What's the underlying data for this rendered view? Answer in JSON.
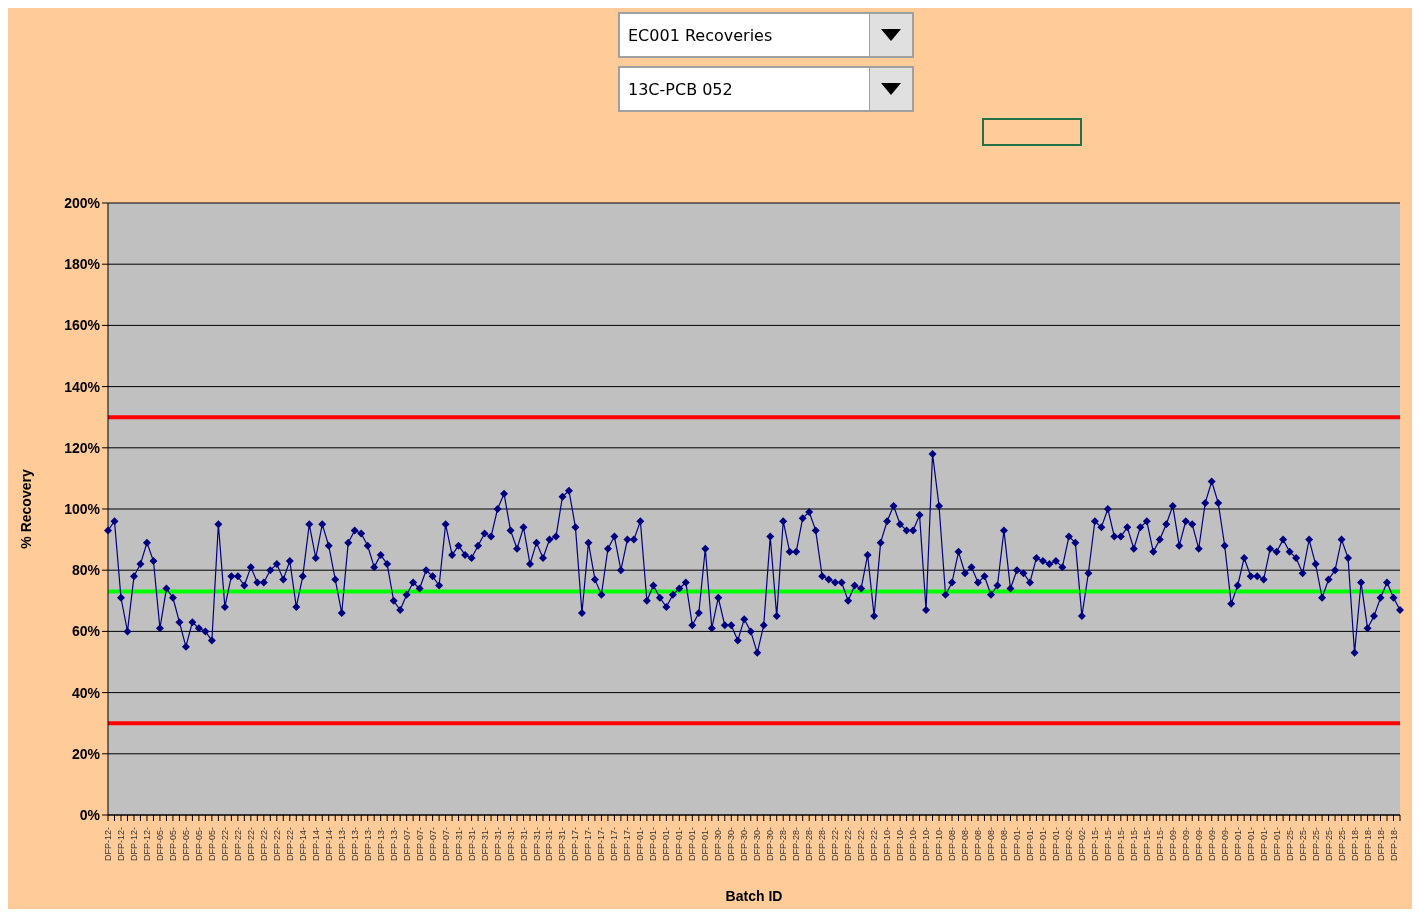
{
  "chart_data": {
    "type": "line",
    "title": "EC001 Recoveries",
    "subtitle": "13C-PCB 052",
    "xlabel": "Batch ID",
    "ylabel": "% Recovery",
    "categories": [
      "DFP-12-",
      null,
      "DFP-12-",
      null,
      "DFP-12-",
      null,
      "DFP-12-",
      null,
      "DFP-05-",
      null,
      "DFP-05-",
      null,
      "DFP-05-",
      null,
      "DFP-05-",
      null,
      "DFP-05-",
      null,
      "DFP-22-",
      null,
      "DFP-22-",
      null,
      "DFP-22-",
      null,
      "DFP-22-",
      null,
      "DFP-22-",
      null,
      "DFP-22-",
      null,
      "DFP-14-",
      null,
      "DFP-14-",
      null,
      "DFP-14-",
      null,
      "DFP-13-",
      null,
      "DFP-13-",
      null,
      "DFP-13-",
      null,
      "DFP-13-",
      null,
      "DFP-13-",
      null,
      "DFP-07-",
      null,
      "DFP-07-",
      null,
      "DFP-07-",
      null,
      "DFP-07-",
      null,
      "DFP-31-",
      null,
      "DFP-31-",
      null,
      "DFP-31-",
      null,
      "DFP-31-",
      null,
      "DFP-31-",
      null,
      "DFP-31-",
      null,
      "DFP-31-",
      null,
      "DFP-31-",
      null,
      "DFP-31-",
      null,
      "DFP-17-",
      null,
      "DFP-17-",
      null,
      "DFP-17-",
      null,
      "DFP-17-",
      null,
      "DFP-17-",
      null,
      "DFP-01-",
      null,
      "DFP-01-",
      null,
      "DFP-01-",
      null,
      "DFP-01-",
      null,
      "DFP-01-",
      null,
      "DFP-01-",
      null,
      "DFP-30-",
      null,
      "DFP-30-",
      null,
      "DFP-30-",
      null,
      "DFP-30-",
      null,
      "DFP-30-",
      null,
      "DFP-28-",
      null,
      "DFP-28-",
      null,
      "DFP-28-",
      null,
      "DFP-28-",
      null,
      "DFP-22-",
      null,
      "DFP-22-",
      null,
      "DFP-22-",
      null,
      "DFP-22-",
      null,
      "DFP-10-",
      null,
      "DFP-10-",
      null,
      "DFP-10-",
      null,
      "DFP-10-",
      null,
      "DFP-10-",
      null,
      "DFP-08-",
      null,
      "DFP-08-",
      null,
      "DFP-08-",
      null,
      "DFP-08-",
      null,
      "DFP-08-",
      null,
      "DFP-01-",
      null,
      "DFP-01-",
      null,
      "DFP-01-",
      null,
      "DFP-01-",
      null,
      "DFP-02-",
      null,
      "DFP-02-",
      null,
      "DFP-15-",
      null,
      "DFP-15-",
      null,
      "DFP-15-",
      null,
      "DFP-15-",
      null,
      "DFP-15-",
      null,
      "DFP-15-",
      null,
      "DFP-09-",
      null,
      "DFP-09-",
      null,
      "DFP-09-",
      null,
      "DFP-09-",
      null,
      "DFP-09-",
      null,
      "DFP-01-",
      null,
      "DFP-01-",
      null,
      "DFP-01-",
      null,
      "DFP-01-",
      null,
      "DFP-25-",
      null,
      "DFP-25-",
      null,
      "DFP-25-",
      null,
      "DFP-25-",
      null,
      "DFP-25-",
      null,
      "DFP-18-",
      null,
      "DFP-18-",
      null,
      "DFP-18-",
      null,
      "DFP-18-",
      null
    ],
    "series": [
      {
        "color": "#000080",
        "values": [
          93,
          96,
          71,
          60,
          78,
          82,
          89,
          83,
          61,
          74,
          71,
          63,
          55,
          63,
          61,
          60,
          57,
          95,
          68,
          78,
          78,
          75,
          81,
          76,
          76,
          80,
          82,
          77,
          83,
          68,
          78,
          95,
          84,
          95,
          88,
          77,
          66,
          89,
          93,
          92,
          88,
          81,
          85,
          82,
          70,
          67,
          72,
          76,
          74,
          80,
          78,
          75,
          95,
          85,
          88,
          85,
          84,
          88,
          92,
          91,
          100,
          105,
          93,
          87,
          94,
          82,
          89,
          84,
          90,
          91,
          104,
          106,
          94,
          66,
          89,
          77,
          72,
          87,
          91,
          80,
          90,
          90,
          96,
          70,
          75,
          71,
          68,
          72,
          74,
          76,
          62,
          66,
          87,
          61,
          71,
          62,
          62,
          57,
          64,
          60,
          53,
          62,
          91,
          65,
          96,
          86,
          86,
          97,
          99,
          93,
          78,
          77,
          76,
          76,
          70,
          75,
          74,
          85,
          65,
          89,
          96,
          101,
          95,
          93,
          93,
          98,
          67,
          118,
          101,
          72,
          76,
          86,
          79,
          81,
          76,
          78,
          72,
          75,
          93,
          74,
          80,
          79,
          76,
          84,
          83,
          82,
          83,
          81,
          91,
          89,
          65,
          79,
          96,
          94,
          100,
          91,
          91,
          94,
          87,
          94,
          96,
          86,
          90,
          95,
          101,
          88,
          96,
          95,
          87,
          102,
          109,
          102,
          88,
          69,
          75,
          84,
          78,
          78,
          77,
          87,
          86,
          90,
          86,
          84,
          79,
          90,
          82,
          71,
          77,
          80,
          90,
          84,
          53,
          76,
          61,
          65,
          71,
          76,
          71,
          67
        ]
      }
    ],
    "ylim": [
      0,
      200
    ],
    "yticks": [
      {
        "value": 0,
        "label": "0%"
      },
      {
        "value": 20,
        "label": "20%"
      },
      {
        "value": 40,
        "label": "40%"
      },
      {
        "value": 60,
        "label": "60%"
      },
      {
        "value": 80,
        "label": "80%"
      },
      {
        "value": 100,
        "label": "100%"
      },
      {
        "value": 120,
        "label": "120%"
      },
      {
        "value": 140,
        "label": "140%"
      },
      {
        "value": 160,
        "label": "160%"
      },
      {
        "value": 180,
        "label": "180%"
      },
      {
        "value": 200,
        "label": "200%"
      }
    ],
    "grid": "y",
    "marker": "diamond",
    "line_style": "solid",
    "legend": false,
    "ref_lines": [
      {
        "axis": "y",
        "value": 130,
        "color": "#ff0000"
      },
      {
        "axis": "y",
        "value": 73,
        "color": "#00ff00"
      },
      {
        "axis": "y",
        "value": 30,
        "color": "#ff0000"
      }
    ]
  }
}
